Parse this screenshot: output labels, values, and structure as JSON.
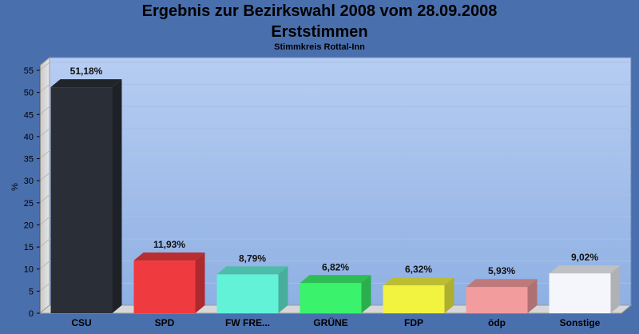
{
  "chart_data": {
    "type": "bar",
    "title": "Ergebnis zur Bezirkswahl 2008 vom 28.09.2008",
    "title2": "Erststimmen",
    "subtitle": "Stimmkreis Rottal-Inn",
    "ylabel": "%",
    "xlabel": "",
    "ylim": [
      0,
      55
    ],
    "yticks": [
      0,
      5,
      10,
      15,
      20,
      25,
      30,
      35,
      40,
      45,
      50,
      55
    ],
    "grid": true,
    "categories": [
      "CSU",
      "SPD",
      "FW FRE...",
      "GRÜNE",
      "FDP",
      "ödp",
      "Sonstige"
    ],
    "values": [
      51.18,
      11.93,
      8.79,
      6.82,
      6.32,
      5.93,
      9.02
    ],
    "labels": [
      "51,18%",
      "11,93%",
      "8,79%",
      "6,82%",
      "6,32%",
      "5,93%",
      "9,02%"
    ],
    "colors": [
      "#2a2e36",
      "#ef3b3f",
      "#62f2d8",
      "#3af26c",
      "#f2f241",
      "#f39c9e",
      "#f4f6fb"
    ]
  }
}
